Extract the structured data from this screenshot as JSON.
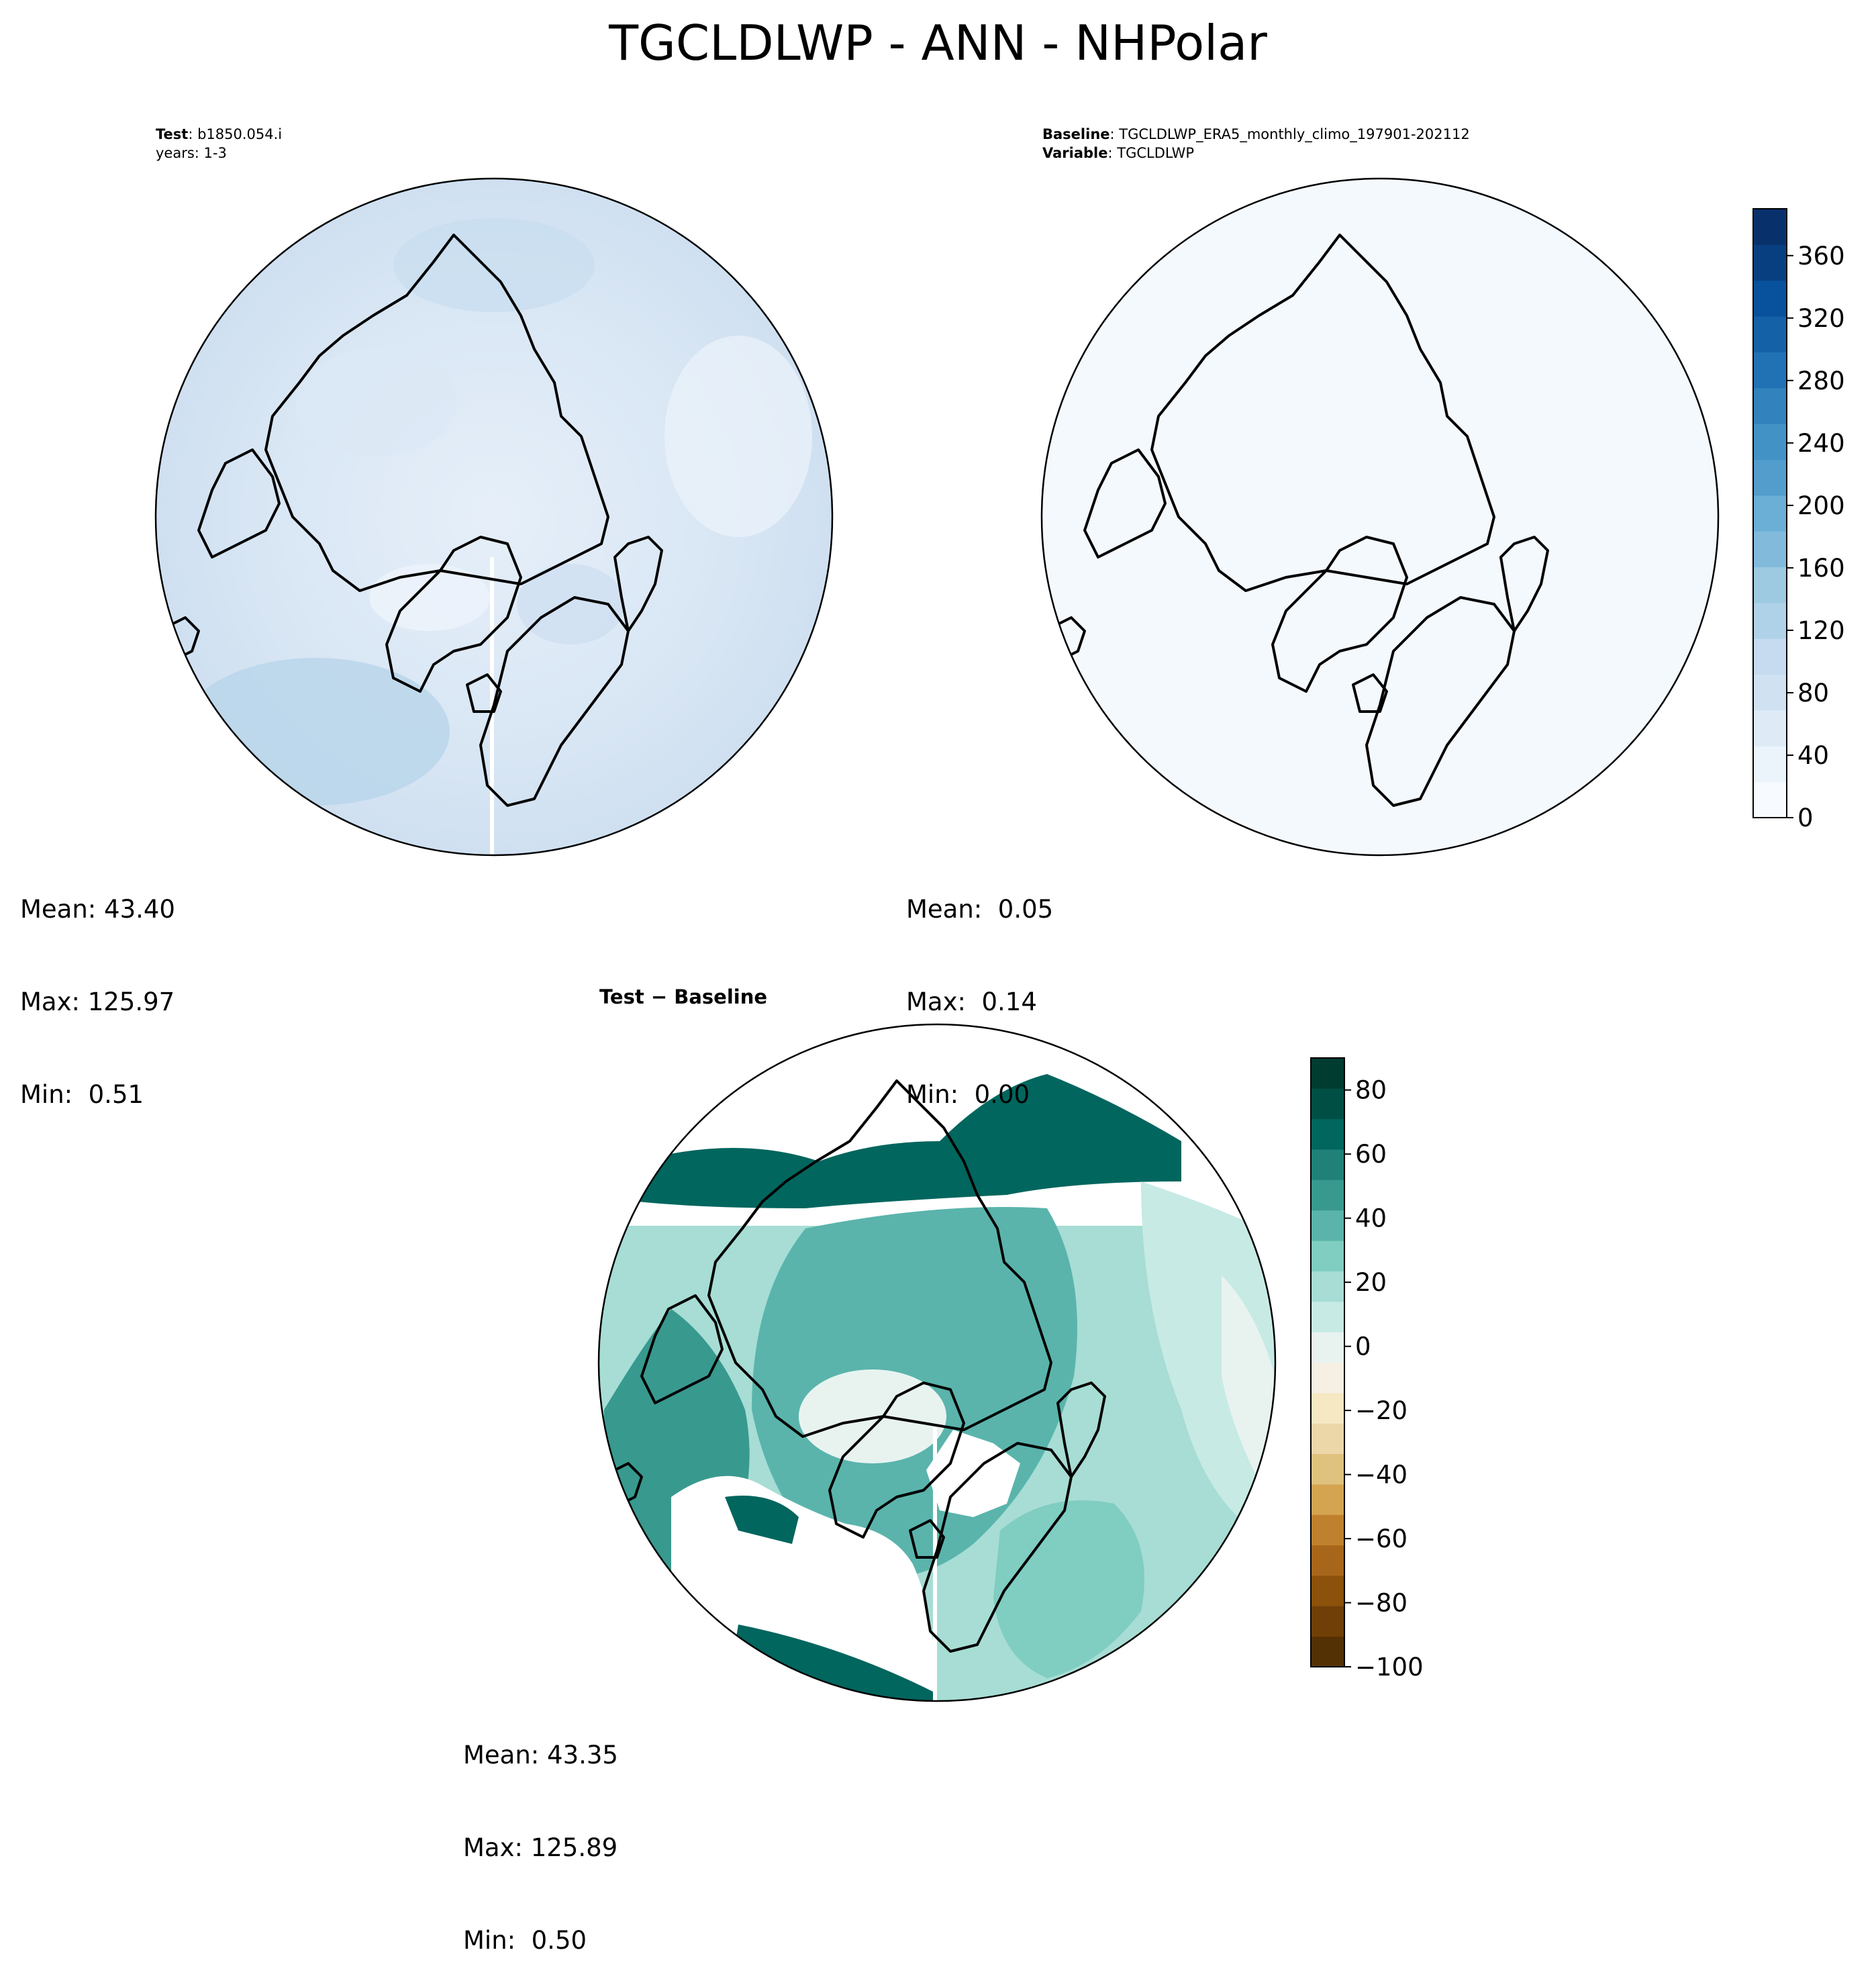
{
  "title": "TGCLDLWP - ANN - NHPolar",
  "colors": {
    "blues": [
      "#f7fbff",
      "#ebf3fb",
      "#deebf7",
      "#d0e2f2",
      "#c6dbef",
      "#b0d2e8",
      "#9ecae1",
      "#82badb",
      "#6baed6",
      "#529dcc",
      "#4292c6",
      "#3282be",
      "#2171b5",
      "#1461a8",
      "#08519c",
      "#083f80",
      "#08306b"
    ],
    "brbg": [
      "#543005",
      "#6f3f07",
      "#8c510a",
      "#a8661a",
      "#bf812d",
      "#d4a451",
      "#dfc27d",
      "#ecd7a8",
      "#f6e8c3",
      "#f5f0e3",
      "#e8f3f0",
      "#c7eae5",
      "#a7ddd4",
      "#80cdc1",
      "#5ab4ac",
      "#38998f",
      "#1f8178",
      "#01665e",
      "#004f44",
      "#003c30"
    ],
    "coastline": "#000000"
  },
  "panels": {
    "test": {
      "label": "Test",
      "case": ": b1850.054.i",
      "years": "years: 1-3",
      "stats": {
        "mean": "Mean: 43.40",
        "max": "Max: 125.97",
        "min": "Min:  0.51"
      }
    },
    "baseline": {
      "label": "Baseline",
      "case": ": TGCLDLWP_ERA5_monthly_climo_197901-202112",
      "variable_label": "Variable",
      "variable": ": TGCLDLWP",
      "stats": {
        "mean": "Mean:  0.05",
        "max": "Max:  0.14",
        "min": "Min:  0.00"
      }
    },
    "diff": {
      "title": "Test − Baseline",
      "stats": {
        "mean": "Mean: 43.35",
        "max": "Max: 125.89",
        "min": "Min:  0.50"
      }
    }
  },
  "chart_data": [
    {
      "type": "heatmap",
      "panel": "Test",
      "projection": "north polar stereographic",
      "colorbar": {
        "range": [
          0,
          390
        ],
        "ticks": [
          "0",
          "40",
          "80",
          "120",
          "160",
          "200",
          "240",
          "280",
          "320",
          "360"
        ],
        "colormap": "Blues"
      }
    },
    {
      "type": "heatmap",
      "panel": "Baseline",
      "projection": "north polar stereographic",
      "colorbar": {
        "range": [
          0,
          390
        ],
        "ticks": [
          "0",
          "40",
          "80",
          "120",
          "160",
          "200",
          "240",
          "280",
          "320",
          "360"
        ],
        "colormap": "Blues"
      }
    },
    {
      "type": "heatmap",
      "panel": "Test − Baseline",
      "projection": "north polar stereographic",
      "colorbar": {
        "range": [
          -100,
          90
        ],
        "ticks": [
          "−100",
          "−80",
          "−60",
          "−40",
          "−20",
          "0",
          "20",
          "40",
          "60",
          "80"
        ],
        "colormap": "BrBG"
      }
    }
  ]
}
